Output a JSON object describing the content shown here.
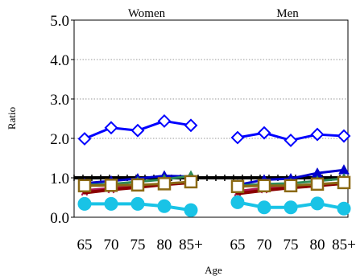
{
  "chart_data": {
    "type": "line",
    "title": "",
    "xlabel": "Age",
    "ylabel": "Ratio",
    "ylim": [
      0,
      5
    ],
    "yticks": [
      "0.0",
      "1.0",
      "2.0",
      "3.0",
      "4.0",
      "5.0"
    ],
    "grid": "horizontal dotted at 1.0, 2.0, 3.0, 4.0",
    "reference_line": 1.0,
    "groups": [
      "Women",
      "Men"
    ],
    "categories": [
      "65",
      "70",
      "75",
      "80",
      "85+"
    ],
    "series": [
      {
        "marker": "diamond-open",
        "color": "#0000ff",
        "women": [
          1.99,
          2.27,
          2.2,
          2.44,
          2.33
        ],
        "men": [
          2.02,
          2.14,
          1.95,
          2.1,
          2.06
        ]
      },
      {
        "marker": "triangle",
        "color": "#0000cc",
        "women": [
          0.86,
          0.92,
          0.98,
          1.05,
          1.03
        ],
        "men": [
          0.82,
          0.95,
          0.98,
          1.12,
          1.2
        ]
      },
      {
        "marker": "triangle",
        "color": "#2e8b57",
        "women": [
          0.82,
          0.84,
          0.9,
          0.96,
          1.05
        ],
        "men": [
          0.8,
          0.84,
          0.86,
          0.92,
          0.98
        ]
      },
      {
        "marker": "star",
        "color": "#b0174f",
        "women": [
          0.68,
          0.74,
          0.8,
          0.85,
          0.88
        ],
        "men": [
          0.66,
          0.74,
          0.78,
          0.82,
          0.86
        ]
      },
      {
        "marker": "none",
        "color": "#8b0000",
        "women": [
          0.62,
          0.7,
          0.76,
          0.83,
          0.88
        ],
        "men": [
          0.6,
          0.68,
          0.75,
          0.8,
          0.86
        ]
      },
      {
        "marker": "square-open",
        "color": "#8b6914",
        "women": [
          0.8,
          0.81,
          0.82,
          0.85,
          0.9
        ],
        "men": [
          0.78,
          0.8,
          0.8,
          0.84,
          0.88
        ]
      },
      {
        "marker": "circle",
        "color": "#19c3e6",
        "women": [
          0.34,
          0.34,
          0.34,
          0.28,
          0.18
        ],
        "men": [
          0.38,
          0.25,
          0.25,
          0.35,
          0.22
        ]
      }
    ]
  }
}
